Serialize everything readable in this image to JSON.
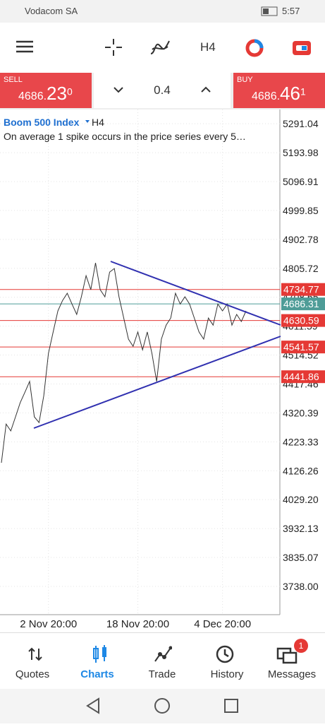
{
  "status_bar": {
    "carrier": "Vodacom SA",
    "time": "5:57"
  },
  "toolbar": {
    "timeframe": "H4"
  },
  "trade_bar": {
    "sell": {
      "label": "SELL",
      "price": "4686.",
      "big": "23",
      "sup": "0"
    },
    "volume": "0.4",
    "buy": {
      "label": "BUY",
      "price": "4686.",
      "big": "46",
      "sup": "1"
    }
  },
  "chart": {
    "symbol": "Boom 500 Index",
    "timeframe": "H4",
    "description": "On average 1 spike occurs in the price series every 5…",
    "ylim": [
      3643,
      5327
    ],
    "yticks": [
      5291.04,
      5193.98,
      5096.91,
      4999.85,
      4902.78,
      4805.72,
      4708.65,
      4611.59,
      4514.52,
      4417.46,
      4320.39,
      4223.33,
      4126.26,
      {
        "value": 4029.2,
        "label": "4029.20"
      },
      3932.13,
      3835.07,
      {
        "value": 3738,
        "label": "3738.00"
      }
    ],
    "categories": [
      null,
      null,
      null,
      null,
      null,
      null,
      null,
      null,
      null,
      null,
      "2 Nov 20:00",
      null,
      null,
      null,
      null,
      null,
      null,
      null,
      null,
      null,
      null,
      null,
      null,
      null,
      null,
      null,
      null,
      null,
      null,
      "18 Nov 20:00",
      null,
      null,
      null,
      null,
      null,
      null,
      null,
      null,
      null,
      null,
      null,
      null,
      null,
      null,
      null,
      null,
      null,
      "4 Dec 20:00",
      null,
      null,
      null,
      null,
      null
    ],
    "values": [
      4153,
      4283,
      4260,
      4307,
      4355,
      4390,
      4426,
      4307,
      4288,
      4378,
      4520,
      4592,
      4663,
      4698,
      4722,
      4686,
      4651,
      4710,
      4781,
      4734,
      4824,
      4734,
      4710,
      4793,
      4805,
      4710,
      4639,
      4568,
      4544,
      4592,
      4532,
      4592,
      4520,
      4426,
      4568,
      4615,
      4639,
      4722,
      4686,
      4710,
      4686,
      4639,
      4592,
      4568,
      4639,
      4615,
      4686,
      4663,
      4686,
      4615,
      4651,
      4627,
      4663
    ],
    "levels": [
      {
        "value": 4734.77,
        "color": "#e53935"
      },
      {
        "value": 4686.31,
        "color": "#4e9c97"
      },
      {
        "value": 4630.59,
        "color": "#e53935"
      },
      {
        "value": 4541.57,
        "color": "#e53935"
      },
      {
        "value": 4441.86,
        "color": "#e53935"
      }
    ]
  },
  "bottom_nav": {
    "items": [
      "Quotes",
      "Charts",
      "Trade",
      "History",
      "Messages"
    ],
    "badge": "1"
  }
}
